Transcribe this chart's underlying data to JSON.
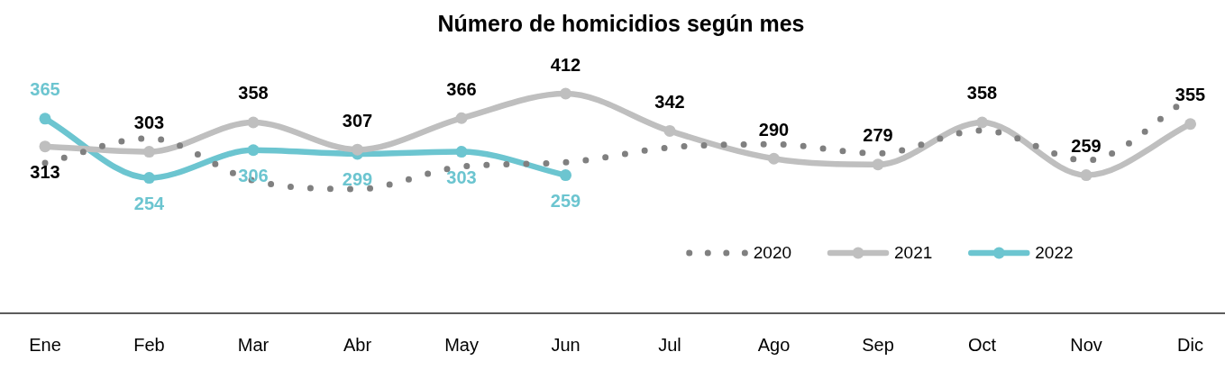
{
  "chart_data": {
    "type": "line",
    "title": "Número de homicidios según mes",
    "categories": [
      "Ene",
      "Feb",
      "Mar",
      "Abr",
      "May",
      "Jun",
      "Jul",
      "Ago",
      "Sep",
      "Oct",
      "Nov",
      "Dic"
    ],
    "tick_labels": "x",
    "legend": "bottom right",
    "series": [
      {
        "name": "2020",
        "color": "#808080",
        "line_style": "dotted",
        "marker": "none",
        "values": [
          282,
          328,
          249,
          233,
          275,
          283,
          311,
          317,
          300,
          343,
          287,
          405
        ]
      },
      {
        "name": "2021",
        "color": "#bfbfbf",
        "line_style": "solid",
        "marker": "circle",
        "values": [
          313,
          303,
          358,
          307,
          366,
          412,
          342,
          290,
          279,
          358,
          259,
          355
        ],
        "value_labels": [
          "313",
          "303",
          "358",
          "307",
          "366",
          "412",
          "342",
          "290",
          "279",
          "358",
          "259",
          "355"
        ]
      },
      {
        "name": "2022",
        "color": "#6cc5d0",
        "line_style": "solid",
        "marker": "circle",
        "values": [
          365,
          254,
          306,
          299,
          303,
          259,
          null,
          null,
          null,
          null,
          null,
          null
        ],
        "value_labels": [
          "365",
          "254",
          "306",
          "299",
          "303",
          "259",
          null,
          null,
          null,
          null,
          null,
          null
        ]
      }
    ]
  }
}
